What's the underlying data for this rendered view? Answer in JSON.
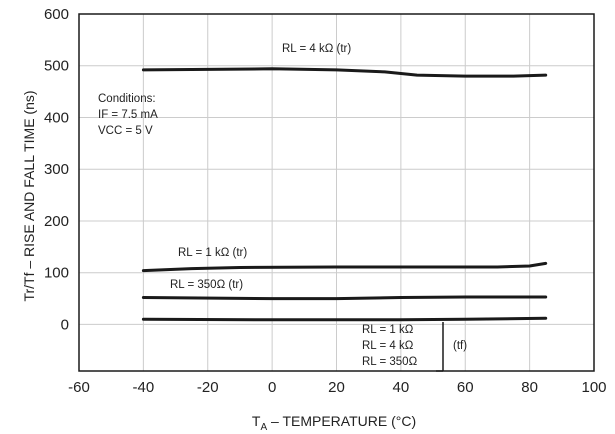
{
  "chart_data": {
    "type": "line",
    "title": "",
    "xlabel": "T_A – TEMPERATURE (°C)",
    "xlabel_parts": {
      "main": "T",
      "subscript": "A",
      "rest": " – TEMPERATURE (°C)"
    },
    "ylabel": "Tr/Tf – RISE AND FALL TIME (ns)",
    "xlim": [
      -60,
      100
    ],
    "ylim": [
      -90,
      600
    ],
    "xticks": [
      -60,
      -40,
      -20,
      0,
      20,
      40,
      60,
      80,
      100
    ],
    "yticks": [
      0,
      100,
      200,
      300,
      400,
      500,
      600
    ],
    "xtick_labels": [
      "-60",
      "-40",
      "-20",
      "0",
      "20",
      "40",
      "60",
      "80",
      "100"
    ],
    "ytick_labels": [
      "0",
      "100",
      "200",
      "300",
      "400",
      "500",
      "600"
    ],
    "grid": true,
    "legend": "none",
    "series": [
      {
        "name": "RL = 4 kΩ (tr)",
        "x": [
          -40,
          -20,
          0,
          20,
          35,
          45,
          60,
          75,
          85
        ],
        "y": [
          492,
          493,
          494,
          492,
          488,
          482,
          480,
          480,
          482
        ]
      },
      {
        "name": "RL = 1 kΩ (tr)",
        "x": [
          -40,
          -25,
          -10,
          20,
          50,
          70,
          80,
          85
        ],
        "y": [
          104,
          108,
          110,
          111,
          111,
          111,
          113,
          118
        ]
      },
      {
        "name": "RL = 350Ω (tr)",
        "x": [
          -40,
          0,
          20,
          40,
          60,
          85
        ],
        "y": [
          52,
          50,
          50,
          52,
          53,
          53
        ]
      },
      {
        "name": "RL = 1 kΩ / RL = 4 kΩ / RL = 350Ω (tf)",
        "x": [
          -40,
          0,
          40,
          60,
          85
        ],
        "y": [
          10,
          9,
          9,
          10,
          12
        ]
      }
    ],
    "annotations": {
      "rl4k_tr": "RL = 4 kΩ (tr)",
      "conditions_title": "Conditions:",
      "conditions_if": "IF = 7.5 mA",
      "conditions_vcc": "VCC = 5 V",
      "rl1k_tr": "RL = 1 kΩ (tr)",
      "rl350_tr": "RL = 350Ω  (tr)",
      "tf_rl1k": "RL = 1 kΩ",
      "tf_rl4k": "RL = 4 kΩ",
      "tf_rl350": "RL = 350Ω",
      "tf_tag": "(tf)"
    },
    "colors": {
      "curve": "#1a1a1a",
      "grid": "#cccccc",
      "frame": "#1a1a1a"
    }
  }
}
